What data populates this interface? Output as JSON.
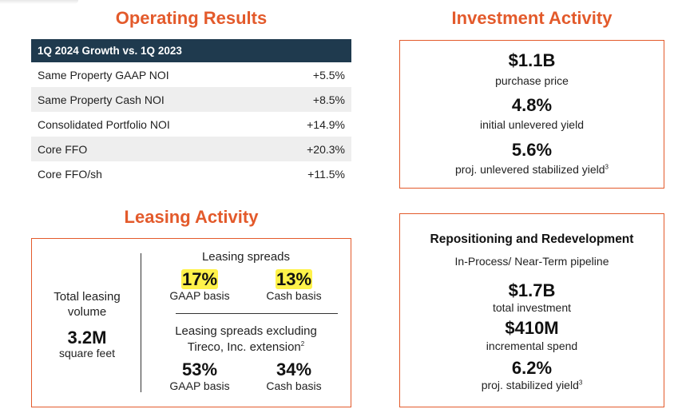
{
  "operating": {
    "title": "Operating Results",
    "header": "1Q 2024 Growth vs. 1Q 2023",
    "rows": [
      {
        "label": "Same Property GAAP NOI",
        "value": "+5.5%"
      },
      {
        "label": "Same Property Cash NOI",
        "value": "+8.5%"
      },
      {
        "label": "Consolidated Portfolio NOI",
        "value": "+14.9%"
      },
      {
        "label": "Core FFO",
        "value": "+20.3%"
      },
      {
        "label": "Core FFO/sh",
        "value": "+11.5%"
      }
    ]
  },
  "investment": {
    "title": "Investment Activity",
    "items": [
      {
        "value": "$1.1B",
        "label": "purchase price",
        "sup": ""
      },
      {
        "value": "4.8%",
        "label": "initial unlevered yield",
        "sup": ""
      },
      {
        "value": "5.6%",
        "label": "proj. unlevered stabilized yield",
        "sup": "3"
      }
    ]
  },
  "leasing": {
    "title": "Leasing Activity",
    "total_label_1": "Total leasing",
    "total_label_2": "volume",
    "total_value": "3.2M",
    "total_unit": "square feet",
    "spreads_title": "Leasing spreads",
    "gaap_value": "17%",
    "gaap_label": "GAAP basis",
    "cash_value": "13%",
    "cash_label": "Cash basis",
    "excl_title_1": "Leasing spreads excluding",
    "excl_title_2": "Tireco, Inc. extension",
    "excl_sup": "2",
    "excl_gaap_value": "53%",
    "excl_gaap_label": "GAAP basis",
    "excl_cash_value": "34%",
    "excl_cash_label": "Cash basis"
  },
  "redevelopment": {
    "title": "Repositioning and Redevelopment",
    "subtitle": "In-Process/ Near-Term pipeline",
    "items": [
      {
        "value": "$1.7B",
        "label": "total investment",
        "sup": ""
      },
      {
        "value": "$410M",
        "label": "incremental spend",
        "sup": ""
      },
      {
        "value": "6.2%",
        "label": "proj. stabilized yield",
        "sup": "3"
      }
    ]
  },
  "colors": {
    "accent": "#e35a2b",
    "header_bg": "#1f3a4e",
    "highlight": "#fff24a"
  }
}
